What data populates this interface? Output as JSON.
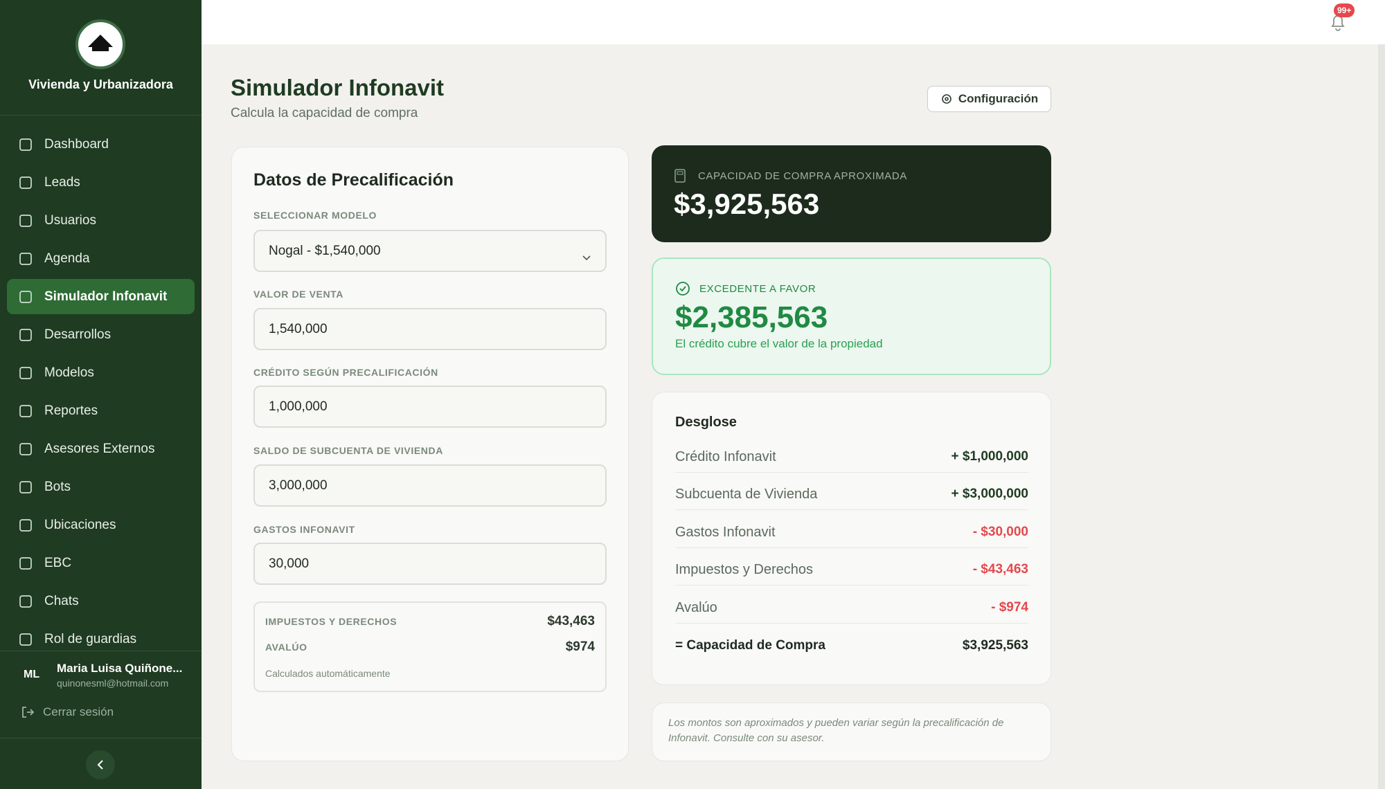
{
  "sidebar": {
    "brand": "Vivienda y Urbanizadora",
    "nav": [
      "Dashboard",
      "Leads",
      "Usuarios",
      "Agenda",
      "Simulador Infonavit",
      "Desarrollos",
      "Modelos",
      "Reportes",
      "Asesores Externos",
      "Bots",
      "Ubicaciones",
      "EBC",
      "Chats",
      "Rol de guardias"
    ],
    "active": 4,
    "user": {
      "initials": "ML",
      "name": "Maria Luisa Quiñone...",
      "email": "quinonesml@hotmail.com"
    },
    "logout": "Cerrar sesión"
  },
  "topbar": {
    "badge": "99+"
  },
  "header": {
    "title": "Simulador Infonavit",
    "subtitle": "Calcula la capacidad de compra",
    "config_button": "Configuración"
  },
  "form": {
    "title": "Datos de Precalificación",
    "fields": [
      {
        "label": "SELECCIONAR MODELO",
        "value": "Nogal - $1,540,000"
      },
      {
        "label": "VALOR DE VENTA",
        "value": "1,540,000"
      },
      {
        "label": "CRÉDITO SEGÚN PRECALIFICACIÓN",
        "value": "1,000,000"
      },
      {
        "label": "SALDO DE SUBCUENTA DE VIVIENDA",
        "value": "3,000,000"
      },
      {
        "label": "GASTOS INFONAVIT",
        "value": "30,000"
      }
    ],
    "computed": {
      "rows": [
        {
          "label": "IMPUESTOS Y DERECHOS",
          "value": "$43,463"
        },
        {
          "label": "AVALÚO",
          "value": "$974"
        }
      ],
      "note": "Calculados automáticamente"
    }
  },
  "summary": {
    "capacity": {
      "label": "CAPACIDAD DE COMPRA APROXIMADA",
      "value": "$3,925,563"
    },
    "surplus": {
      "label": "EXCEDENTE A FAVOR",
      "value": "$2,385,563",
      "description": "El crédito cubre el valor de la propiedad"
    }
  },
  "breakdown": {
    "title": "Desglose",
    "rows": [
      {
        "label": "Crédito Infonavit",
        "value": "+ $1,000,000",
        "color": "#1f3b22"
      },
      {
        "label": "Subcuenta de Vivienda",
        "value": "+ $3,000,000",
        "color": "#1f3b22"
      },
      {
        "label": "Gastos Infonavit",
        "value": "- $30,000",
        "color": "#e5484d"
      },
      {
        "label": "Impuestos y Derechos",
        "value": "- $43,463",
        "color": "#e5484d"
      },
      {
        "label": "Avalúo",
        "value": "- $974",
        "color": "#e5484d"
      }
    ],
    "total": {
      "label": "= Capacidad de Compra",
      "value": "$3,925,563"
    }
  },
  "disclaimer": "Los montos son aproximados y pueden variar según la precalificación de Infonavit. Consulte con su asesor."
}
